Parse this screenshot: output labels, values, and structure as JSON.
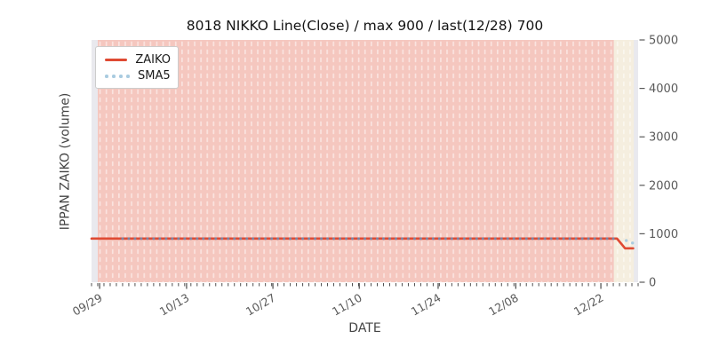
{
  "chart_data": {
    "type": "line",
    "title": "8018 NIKKO Line(Close) / max 900 / last(12/28) 700",
    "xlabel": "DATE",
    "ylabel": "IPPAN ZAIKO (volume)",
    "ylim": [
      0,
      5000
    ],
    "y_ticks": [
      0,
      1000,
      2000,
      3000,
      4000,
      5000
    ],
    "x_ticks": [
      {
        "label": "09/29",
        "day": 1.3
      },
      {
        "label": "10/13",
        "day": 15.3
      },
      {
        "label": "10/27",
        "day": 29.2
      },
      {
        "label": "11/10",
        "day": 43.1
      },
      {
        "label": "11/24",
        "day": 55.8
      },
      {
        "label": "12/08",
        "day": 68.3
      },
      {
        "label": "12/22",
        "day": 82.0
      }
    ],
    "days_span": 88,
    "grid": false,
    "legend_position": "upper-left",
    "legend": {
      "entries": [
        {
          "label": "ZAIKO",
          "style": "solid-line"
        },
        {
          "label": "SMA5",
          "style": "dotted"
        }
      ]
    },
    "series": [
      {
        "name": "ZAIKO",
        "type": "line",
        "color": "#df4a33",
        "points": [
          [
            0,
            900
          ],
          [
            84.6,
            900
          ],
          [
            85.9,
            700
          ],
          [
            87.2,
            700
          ]
        ]
      },
      {
        "name": "SMA5",
        "type": "dots",
        "color": "#a9cbe0",
        "color_on_line": "#7b86a6",
        "on_line": {
          "start_day": 5,
          "end_day": 84,
          "value": 900,
          "interval_days": 1
        },
        "tail_points": [
          [
            86.1,
            860
          ],
          [
            87.1,
            810
          ]
        ]
      }
    ],
    "regions": [
      {
        "name": "volume-fill-region",
        "start_day": 1.0,
        "end_day": 84.1,
        "color": "#f5c7bf"
      },
      {
        "name": "tail-fill-region",
        "start_day": 84.1,
        "end_day": 87.3,
        "color": "#f5eedf"
      }
    ],
    "colors": {
      "axes_bg": "#e9e9ee",
      "tick": "#3c3c3c",
      "tick_label": "#5a5a5a",
      "title": "#141414",
      "axis_label": "#444444"
    }
  }
}
